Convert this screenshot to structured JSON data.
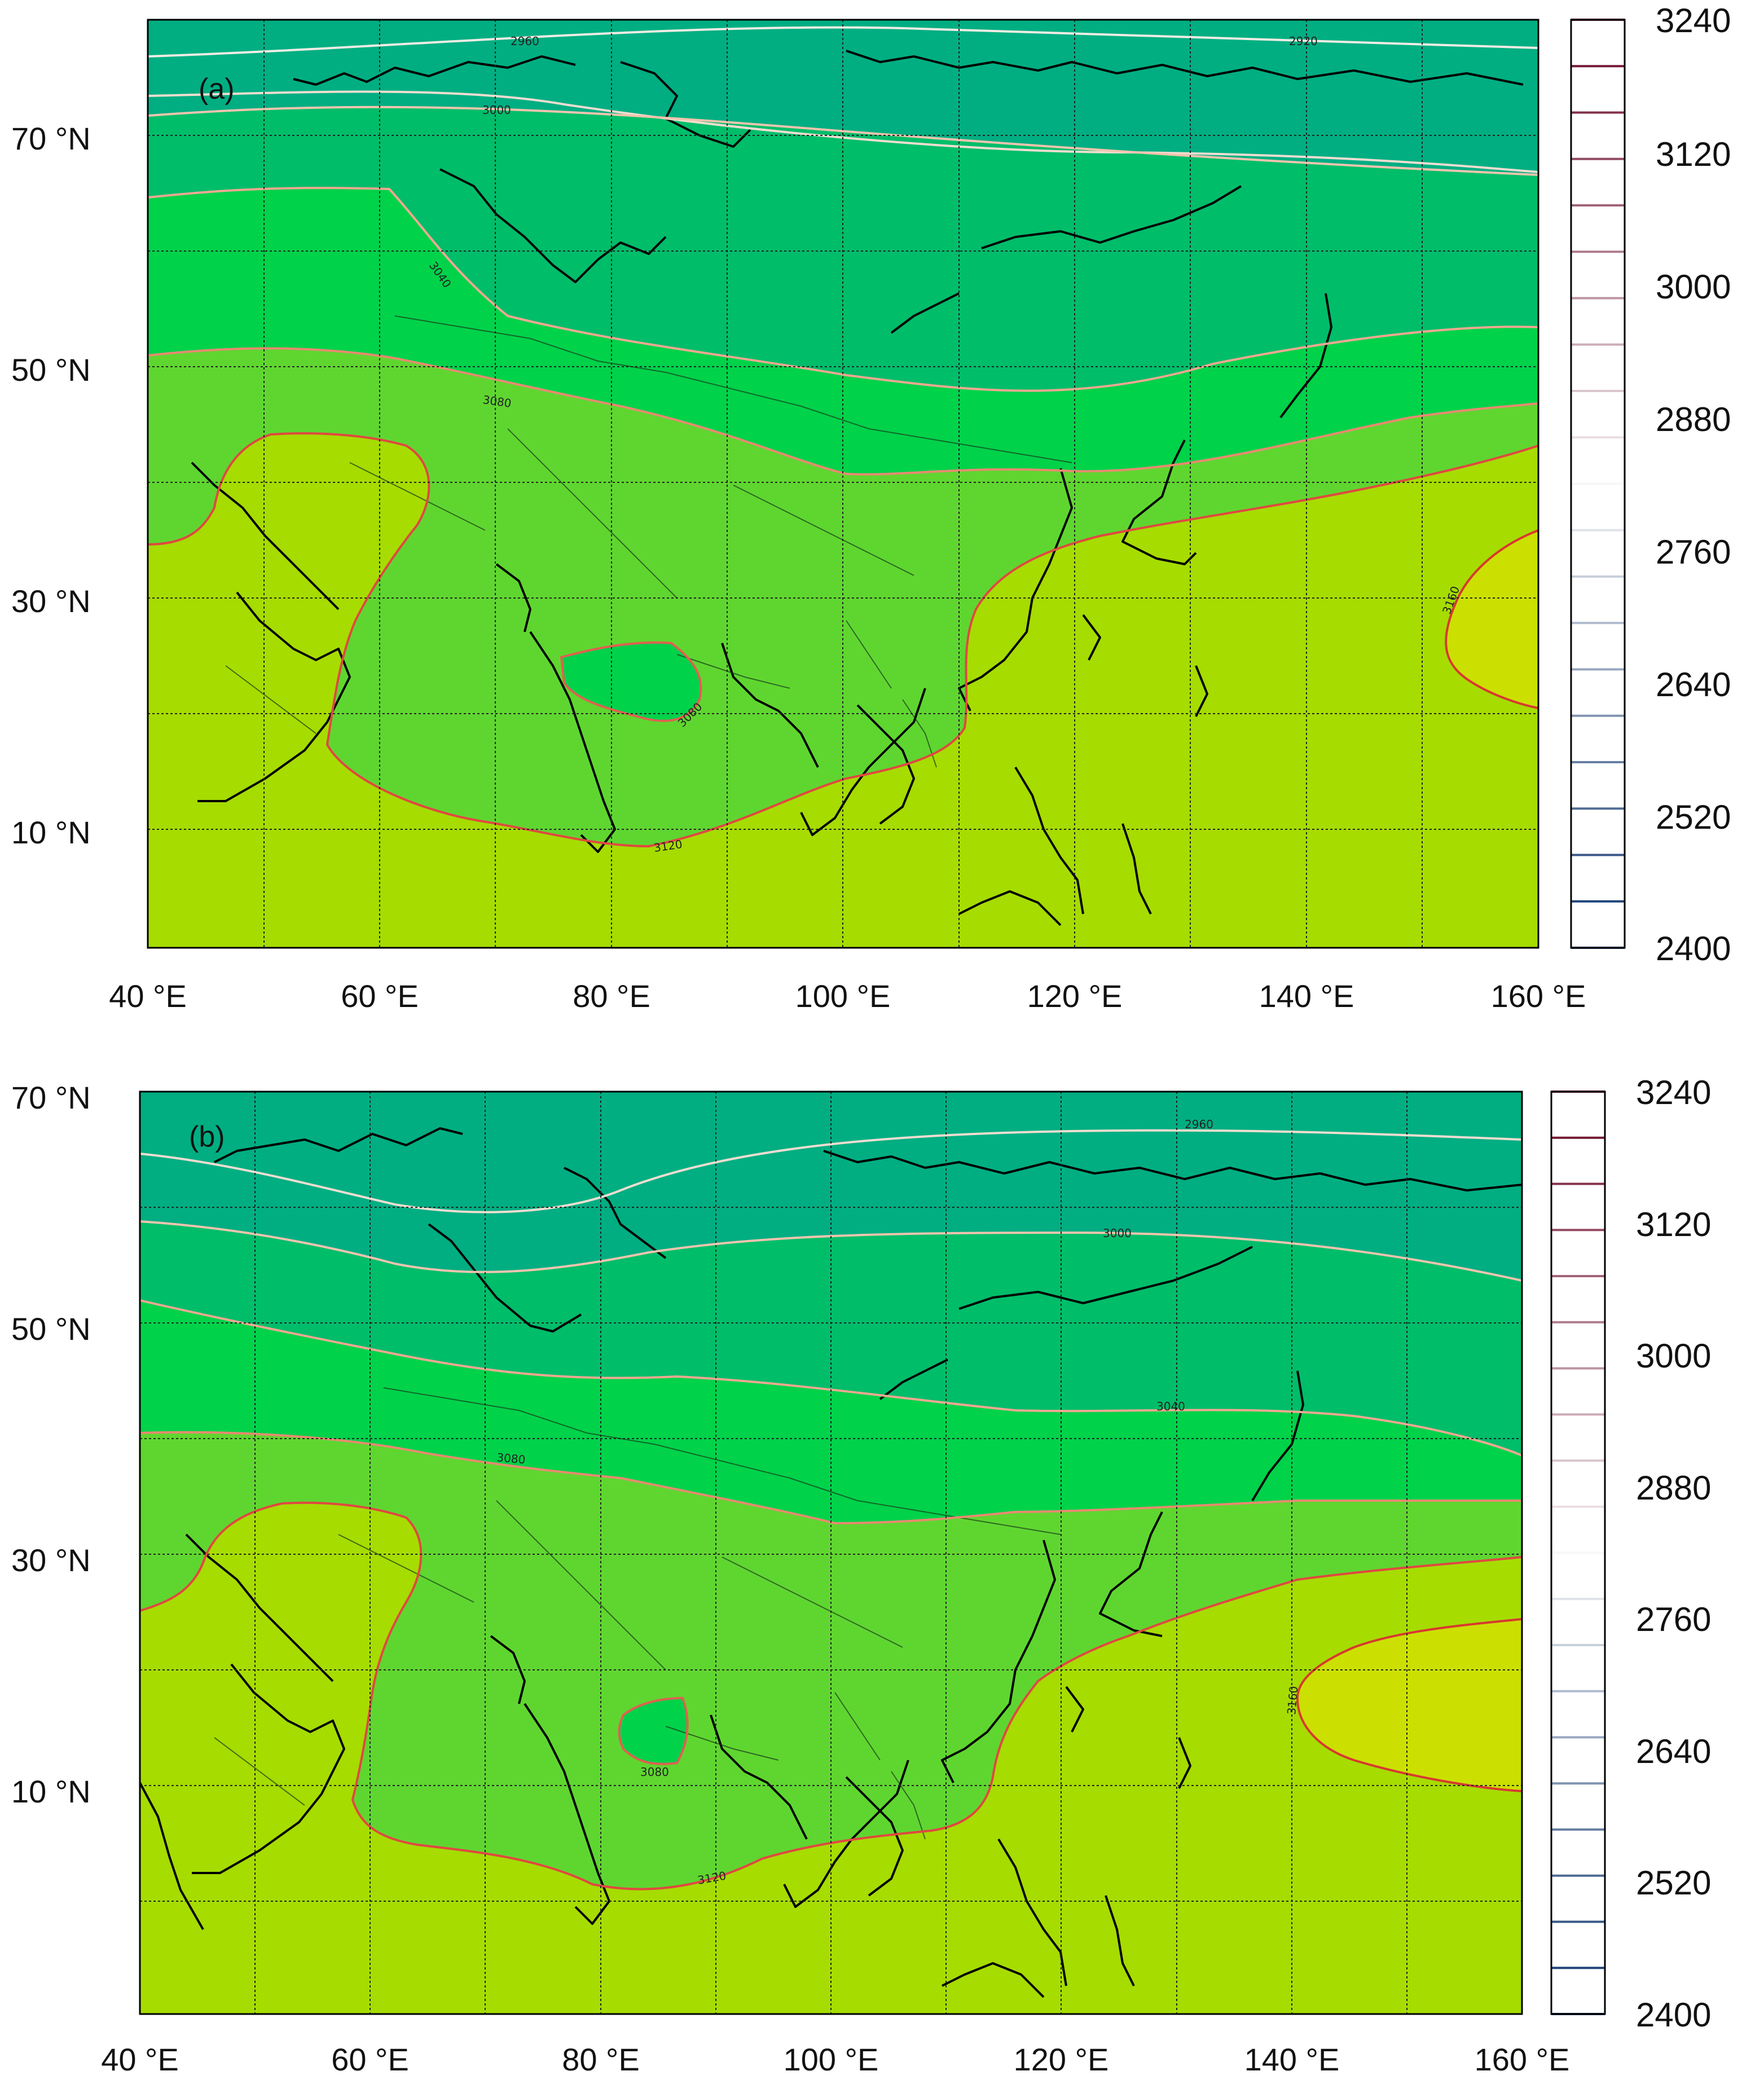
{
  "figure": {
    "colorbar": {
      "ticks": [
        "3240",
        "3120",
        "3000",
        "2880",
        "2760",
        "2640",
        "2520",
        "2400"
      ],
      "levels_count": 21,
      "low_color": "#08306b",
      "mid_color": "#f7f7f7",
      "high_color": "#67001f"
    },
    "fill_colors": {
      "lt_3080": "#00d24a",
      "3080_3120": "#5fd630",
      "3120_3160": "#a6dc00",
      "gt_3160": "#cbe000",
      "3000_3040": "#00bd6a",
      "lt_2960": "#00ae82"
    },
    "panels": [
      {
        "id": "a",
        "tag": "(a)",
        "lat_ticks": [
          "70 °N",
          "50 °N",
          "30 °N",
          "10 °N"
        ],
        "lon_ticks": [
          "40 °E",
          "60 °E",
          "80 °E",
          "100 °E",
          "120 °E",
          "140 °E",
          "160 °E"
        ],
        "contour_labels": [
          "2960",
          "2920",
          "3000",
          "3040",
          "3080",
          "3080",
          "3120",
          "3160"
        ]
      },
      {
        "id": "b",
        "tag": "(b)",
        "lat_ticks": [
          "70 °N",
          "50 °N",
          "30 °N",
          "10 °N"
        ],
        "lon_ticks": [
          "40 °E",
          "60 °E",
          "80 °E",
          "100 °E",
          "120 °E",
          "140 °E",
          "160 °E"
        ],
        "contour_labels": [
          "2960",
          "3000",
          "3040",
          "3080",
          "3080",
          "3120",
          "3160"
        ]
      }
    ]
  }
}
